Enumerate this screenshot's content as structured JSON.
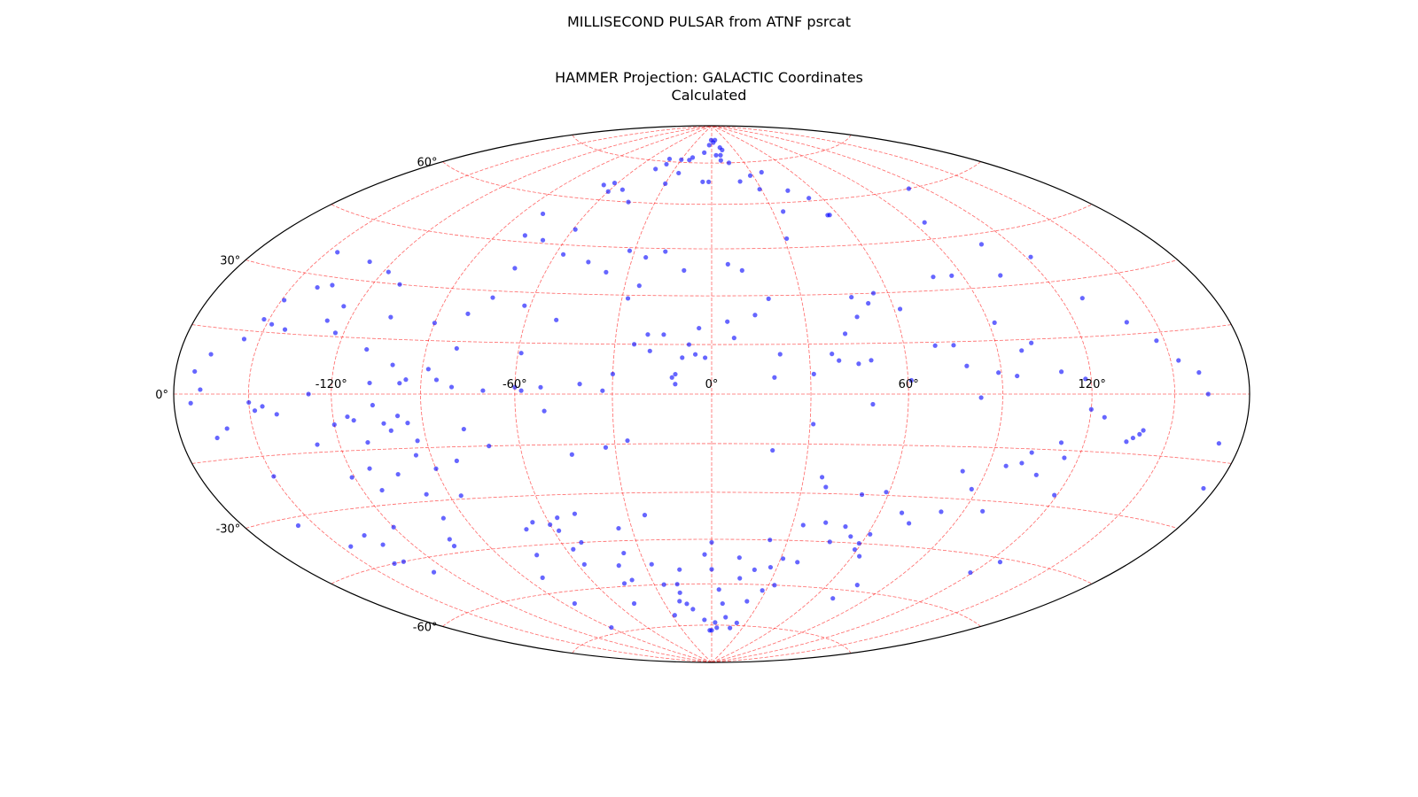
{
  "figure": {
    "suptitle": "MILLISECOND PULSAR from ATNF psrcat",
    "title_line1": "HAMMER Projection: GALACTIC Coordinates",
    "title_line2": "Calculated"
  },
  "colors": {
    "points": "#0000ff",
    "grid": "#ff0000",
    "frame": "#000000",
    "background": "#ffffff"
  },
  "chart_data": {
    "type": "scatter",
    "projection": "hammer",
    "coordinate_frame": "galactic",
    "xlabel": "",
    "ylabel": "",
    "xlim": [
      -180,
      180
    ],
    "ylim": [
      -90,
      90
    ],
    "grid": true,
    "legend": "none",
    "lon_ticks": [
      {
        "value": -120,
        "label": "-120°"
      },
      {
        "value": -60,
        "label": "-60°"
      },
      {
        "value": 0,
        "label": "0°"
      },
      {
        "value": 60,
        "label": "60°"
      },
      {
        "value": 120,
        "label": "120°"
      }
    ],
    "lat_ticks": [
      {
        "value": 60,
        "label": "60°"
      },
      {
        "value": 30,
        "label": "30°"
      },
      {
        "value": 0,
        "label": "0°"
      },
      {
        "value": -30,
        "label": "-30°"
      },
      {
        "value": -60,
        "label": "-60°"
      }
    ],
    "grid_lon": [
      -150,
      -120,
      -90,
      -60,
      -30,
      0,
      30,
      60,
      90,
      120,
      150
    ],
    "grid_lat": [
      -75,
      -60,
      -45,
      -30,
      -15,
      0,
      15,
      30,
      45,
      60,
      75
    ],
    "series": [
      {
        "points": [
          [
            -4,
            82
          ],
          [
            -1,
            84
          ],
          [
            3,
            83
          ],
          [
            7,
            84
          ],
          [
            12,
            81
          ],
          [
            5,
            78
          ],
          [
            -9,
            79
          ],
          [
            10,
            78
          ],
          [
            14,
            80
          ],
          [
            9,
            76
          ],
          [
            16,
            75
          ],
          [
            -20,
            77
          ],
          [
            -22,
            76
          ],
          [
            -30,
            76
          ],
          [
            -40,
            74
          ],
          [
            -45,
            72
          ],
          [
            -42,
            76
          ],
          [
            -25,
            71
          ],
          [
            -30,
            67
          ],
          [
            -2,
            68
          ],
          [
            -6,
            68
          ],
          [
            19,
            68
          ],
          [
            29,
            65
          ],
          [
            28,
            70
          ],
          [
            38,
            71
          ],
          [
            45,
            64
          ],
          [
            53,
            61
          ],
          [
            56,
            55
          ],
          [
            55,
            55
          ],
          [
            35,
            57
          ],
          [
            31,
            48
          ],
          [
            -44,
            60
          ],
          [
            -60,
            63
          ],
          [
            -67,
            65
          ],
          [
            -62,
            66
          ],
          [
            -53,
            64
          ],
          [
            -80,
            54
          ],
          [
            -78,
            47
          ],
          [
            -69,
            46
          ],
          [
            -59,
            50
          ],
          [
            -72,
            37
          ],
          [
            -57,
            42
          ],
          [
            -18,
            44
          ],
          [
            -10,
            38
          ],
          [
            -25,
            33
          ],
          [
            6,
            40
          ],
          [
            11,
            38
          ],
          [
            47,
            29
          ],
          [
            52,
            27
          ],
          [
            55,
            30
          ],
          [
            47,
            23
          ],
          [
            62,
            25
          ],
          [
            79,
            34
          ],
          [
            86,
            34
          ],
          [
            92,
            20
          ],
          [
            104,
            33
          ],
          [
            108,
            42
          ],
          [
            95,
            50
          ],
          [
            112,
            60
          ],
          [
            122,
            37
          ],
          [
            128,
            25
          ],
          [
            139,
            18
          ],
          [
            147,
            13
          ],
          [
            153,
            8
          ],
          [
            160,
            5
          ],
          [
            163,
            0
          ],
          [
            135,
            -12
          ],
          [
            137,
            -11
          ],
          [
            139,
            -10
          ],
          [
            140,
            -9
          ],
          [
            112,
            -13
          ],
          [
            101,
            -19
          ],
          [
            119,
            -27
          ],
          [
            171,
            -11
          ],
          [
            175,
            -21
          ],
          [
            125,
            -46
          ],
          [
            119,
            -50
          ],
          [
            82,
            -22
          ],
          [
            97,
            -33
          ],
          [
            59,
            -29
          ],
          [
            59,
            -45
          ],
          [
            63,
            -49
          ],
          [
            61,
            -42
          ],
          [
            59,
            -47
          ],
          [
            75,
            -58
          ],
          [
            71,
            -63
          ],
          [
            47,
            -45
          ],
          [
            50,
            -40
          ],
          [
            54,
            -43
          ],
          [
            42,
            -39
          ],
          [
            38,
            -52
          ],
          [
            34,
            -40
          ],
          [
            31,
            -51
          ],
          [
            33,
            -60
          ],
          [
            28,
            -62
          ],
          [
            22,
            -66
          ],
          [
            22,
            -74
          ],
          [
            18,
            -76
          ],
          [
            11,
            -72
          ],
          [
            5,
            -76
          ],
          [
            3,
            -74
          ],
          [
            0,
            -77
          ],
          [
            -2,
            -77
          ],
          [
            -6,
            -73
          ],
          [
            -13,
            -69
          ],
          [
            -16,
            -67
          ],
          [
            -20,
            -66
          ],
          [
            -25,
            -60
          ],
          [
            -28,
            -71
          ],
          [
            -18,
            -63
          ],
          [
            -18,
            -60
          ],
          [
            -27,
            -53
          ],
          [
            -40,
            -58
          ],
          [
            -49,
            -66
          ],
          [
            -45,
            -59
          ],
          [
            -42,
            -53
          ],
          [
            -52,
            -45
          ],
          [
            -57,
            -52
          ],
          [
            -57,
            -47
          ],
          [
            -58,
            -41
          ],
          [
            -70,
            -40
          ],
          [
            -74,
            -48
          ],
          [
            -84,
            -64
          ],
          [
            -89,
            -73
          ],
          [
            -82,
            -55
          ],
          [
            -98,
            -35
          ],
          [
            -103,
            -41
          ],
          [
            -104,
            -43
          ],
          [
            -120,
            -36
          ],
          [
            -127,
            -49
          ],
          [
            -132,
            -40
          ],
          [
            -133,
            -45
          ],
          [
            -138,
            -45
          ],
          [
            -135,
            -37
          ],
          [
            -146,
            -39
          ],
          [
            -157,
            -32
          ],
          [
            -113,
            -20
          ],
          [
            -82,
            -19
          ],
          [
            -77,
            -10
          ],
          [
            -70,
            -15
          ],
          [
            -51,
            -5
          ],
          [
            -44,
            -18
          ],
          [
            -33,
            -16
          ],
          [
            -26,
            -14
          ],
          [
            -101,
            -10
          ],
          [
            -103,
            -8
          ],
          [
            -98,
            -6
          ],
          [
            -93,
            -13
          ],
          [
            -95,
            -8
          ],
          [
            -113,
            -7
          ],
          [
            -128,
            0
          ],
          [
            -95,
            4
          ],
          [
            -88,
            7
          ],
          [
            -80,
            13
          ],
          [
            -59,
            12
          ],
          [
            -60,
            2
          ],
          [
            -33,
            1
          ],
          [
            -11,
            6
          ],
          [
            -12,
            5
          ],
          [
            -9,
            11
          ],
          [
            -19,
            13
          ],
          [
            -20,
            18
          ],
          [
            -7,
            15
          ],
          [
            -5,
            12
          ],
          [
            -2,
            11
          ],
          [
            -11,
            3
          ],
          [
            -30,
            6
          ],
          [
            -40,
            3
          ],
          [
            -52,
            2
          ],
          [
            -58,
            1
          ],
          [
            -70,
            1
          ],
          [
            -80,
            2
          ],
          [
            -85,
            4
          ],
          [
            -97,
            3
          ],
          [
            -107,
            3
          ],
          [
            -106,
            -3
          ],
          [
            -100,
            8
          ],
          [
            -110,
            12
          ],
          [
            -123,
            16
          ],
          [
            -128,
            19
          ],
          [
            -148,
            17
          ],
          [
            -156,
            13
          ],
          [
            -167,
            9
          ],
          [
            -172,
            5
          ],
          [
            -169,
            1
          ],
          [
            -148,
            -4
          ],
          [
            -145,
            -3
          ],
          [
            -140,
            -5
          ],
          [
            -150,
            -2
          ],
          [
            -173,
            -2
          ],
          [
            -165,
            -10
          ],
          [
            -160,
            -8
          ],
          [
            -128,
            -13
          ],
          [
            -120,
            -8
          ],
          [
            -115,
            -6
          ],
          [
            -110,
            -13
          ],
          [
            -95,
            -17
          ],
          [
            -90,
            -21
          ],
          [
            -104,
            -22
          ],
          [
            -113,
            -26
          ],
          [
            -86,
            -29
          ],
          [
            -98,
            -28
          ],
          [
            -121,
            -22
          ],
          [
            -150,
            -20
          ],
          [
            -142,
            16
          ],
          [
            -125,
            23
          ],
          [
            -106,
            21
          ],
          [
            -110,
            30
          ],
          [
            -118,
            33
          ],
          [
            -129,
            35
          ],
          [
            -149,
            23
          ],
          [
            -140,
            27
          ],
          [
            -135,
            28
          ],
          [
            -146,
            36
          ],
          [
            -152,
            18
          ],
          [
            -90,
            20
          ],
          [
            -80,
            23
          ],
          [
            -74,
            28
          ],
          [
            -62,
            26
          ],
          [
            -50,
            22
          ],
          [
            -38,
            37
          ],
          [
            -46,
            40
          ],
          [
            -32,
            44
          ],
          [
            -25,
            42
          ],
          [
            -28,
            29
          ],
          [
            -24,
            15
          ],
          [
            -15,
            18
          ],
          [
            -4,
            20
          ],
          [
            5,
            22
          ],
          [
            7,
            17
          ],
          [
            14,
            24
          ],
          [
            19,
            29
          ],
          [
            21,
            12
          ],
          [
            19,
            5
          ],
          [
            31,
            6
          ],
          [
            37,
            12
          ],
          [
            39,
            10
          ],
          [
            42,
            18
          ],
          [
            49,
            10
          ],
          [
            49,
            -3
          ],
          [
            61,
            4
          ],
          [
            45,
            9
          ],
          [
            70,
            14
          ],
          [
            76,
            14
          ],
          [
            79,
            8
          ],
          [
            83,
            -1
          ],
          [
            89,
            6
          ],
          [
            95,
            5
          ],
          [
            98,
            12
          ],
          [
            102,
            14
          ],
          [
            110,
            6
          ],
          [
            118,
            4
          ],
          [
            120,
            -4
          ],
          [
            125,
            -6
          ],
          [
            115,
            -17
          ],
          [
            108,
            -22
          ],
          [
            103,
            -16
          ],
          [
            96,
            -20
          ],
          [
            88,
            -27
          ],
          [
            82,
            -34
          ],
          [
            73,
            -38
          ],
          [
            68,
            -35
          ],
          [
            51,
            -30
          ],
          [
            36,
            -25
          ],
          [
            38,
            -28
          ],
          [
            31,
            -9
          ],
          [
            19,
            -17
          ],
          [
            23,
            -45
          ],
          [
            27,
            -54
          ],
          [
            20,
            -55
          ],
          [
            12,
            -51
          ],
          [
            14,
            -58
          ],
          [
            7,
            -67
          ],
          [
            4,
            -62
          ],
          [
            0,
            -55
          ],
          [
            -3,
            -50
          ],
          [
            0,
            -46
          ],
          [
            -15,
            -55
          ],
          [
            -24,
            -37
          ],
          [
            -35,
            -41
          ],
          [
            -37,
            -49
          ],
          [
            -49,
            -36
          ],
          [
            -56,
            -37
          ],
          [
            -60,
            -39
          ],
          [
            -66,
            -38
          ]
        ]
      }
    ]
  }
}
